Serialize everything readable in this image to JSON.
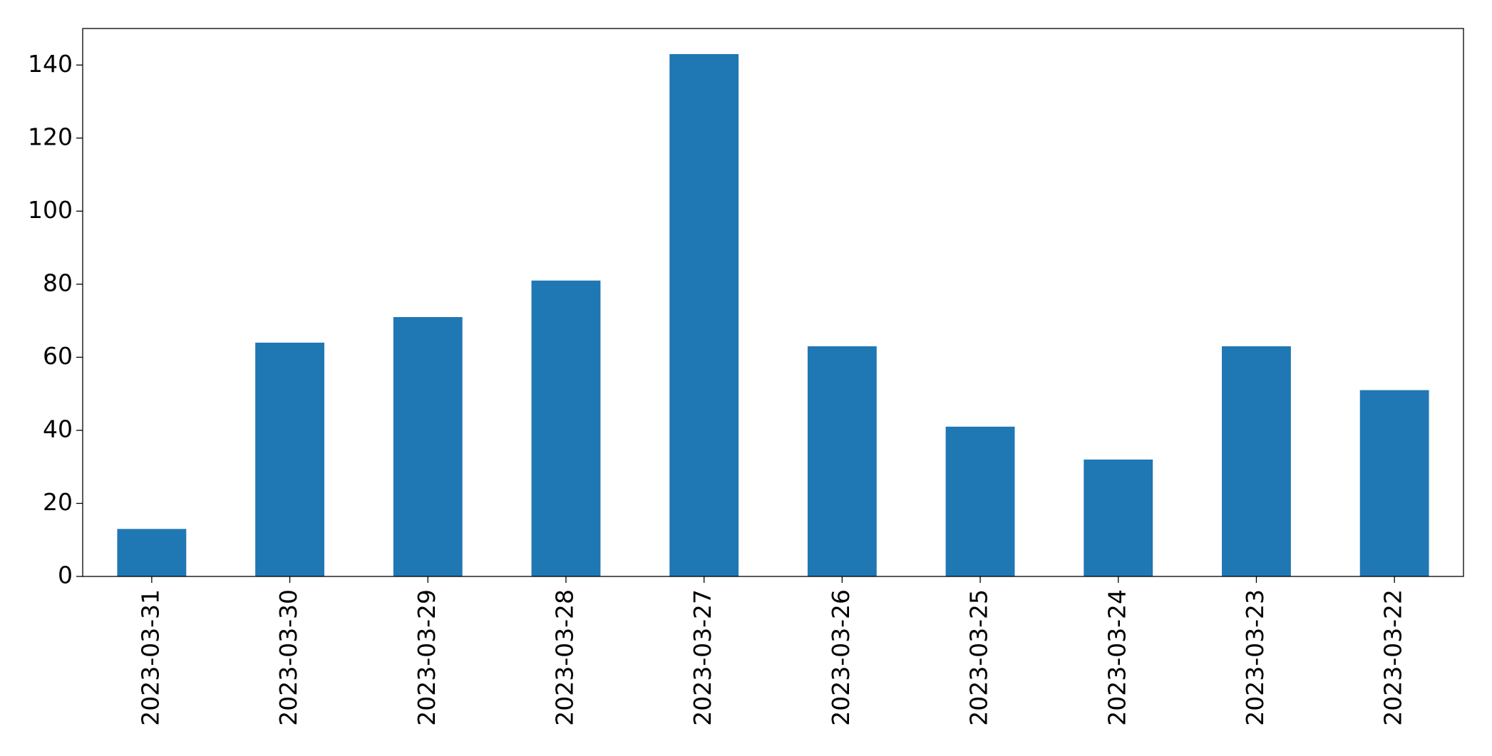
{
  "chart_data": {
    "type": "bar",
    "categories": [
      "2023-03-31",
      "2023-03-30",
      "2023-03-29",
      "2023-03-28",
      "2023-03-27",
      "2023-03-26",
      "2023-03-25",
      "2023-03-24",
      "2023-03-23",
      "2023-03-22"
    ],
    "values": [
      13,
      64,
      71,
      81,
      143,
      63,
      41,
      32,
      63,
      51
    ],
    "color": "#1f77b4",
    "ylim": [
      0,
      150
    ],
    "yticks": [
      0,
      20,
      40,
      60,
      80,
      100,
      120,
      140
    ],
    "grid": false
  }
}
